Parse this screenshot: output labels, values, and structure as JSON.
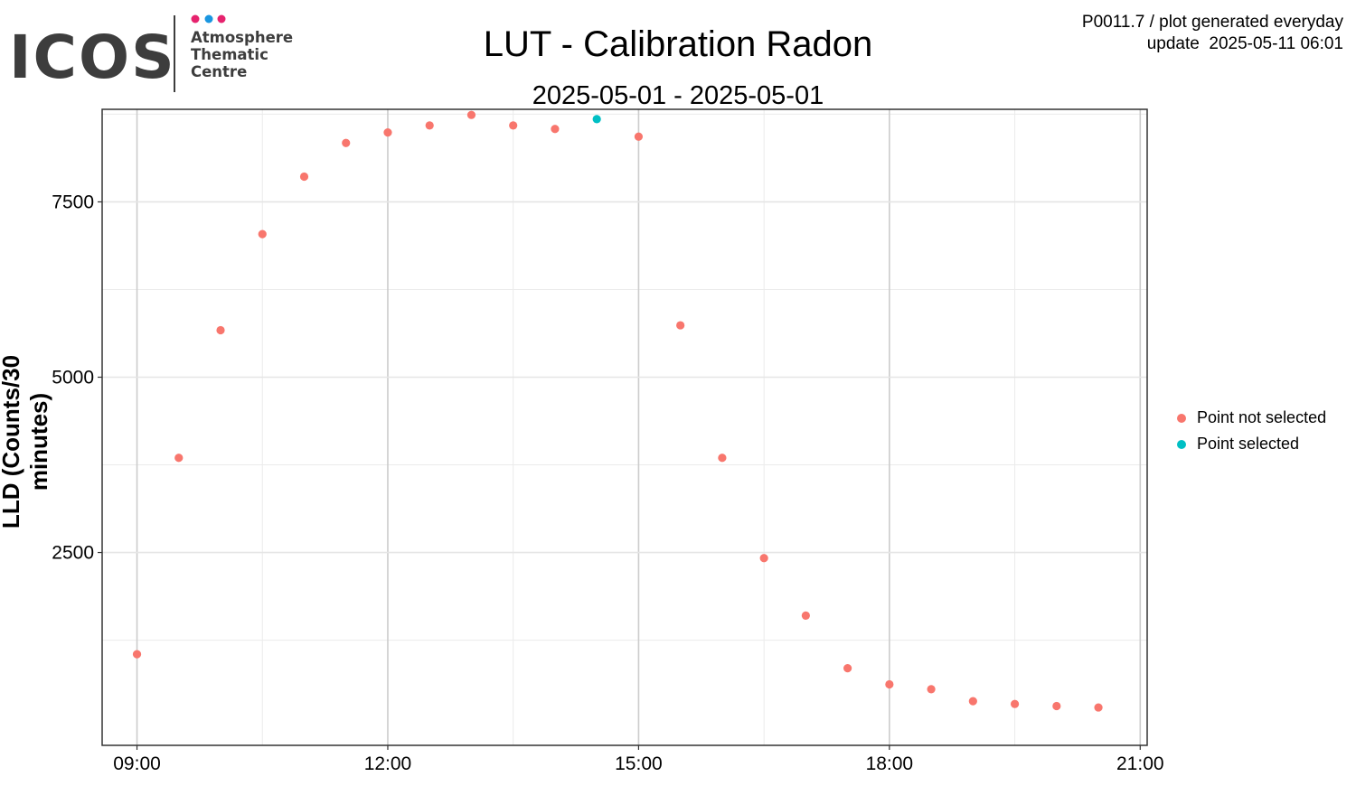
{
  "logo": {
    "wordmark": "ICOS",
    "line1": "Atmosphere",
    "line2": "Thematic",
    "line3": "Centre",
    "dot_colors": [
      "#e6236e",
      "#1a96e0",
      "#e6236e"
    ],
    "wordmark_color": "#3d3d3d"
  },
  "header": {
    "meta_line1": "P0011.7 / plot generated everyday",
    "meta_line2": "update  2025-05-11 06:01"
  },
  "chart_data": {
    "type": "scatter",
    "title": "LUT - Calibration Radon",
    "subtitle": "2025-05-01 - 2025-05-01",
    "xlabel": "",
    "ylabel": "LLD (Counts/30 minutes)",
    "x_tick_labels": [
      "09:00",
      "12:00",
      "15:00",
      "18:00",
      "21:00"
    ],
    "y_tick_labels": [
      "2500",
      "5000",
      "7500"
    ],
    "xlim": [
      "08:35",
      "21:05"
    ],
    "ylim": [
      -250,
      8820
    ],
    "grid": true,
    "legend_position": "right",
    "series": [
      {
        "name": "Point not selected",
        "color": "#f8766d",
        "points": [
          {
            "x": "09:00",
            "y": 1050
          },
          {
            "x": "09:30",
            "y": 3850
          },
          {
            "x": "10:00",
            "y": 5670
          },
          {
            "x": "10:30",
            "y": 7040
          },
          {
            "x": "11:00",
            "y": 7860
          },
          {
            "x": "11:30",
            "y": 8340
          },
          {
            "x": "12:00",
            "y": 8490
          },
          {
            "x": "12:30",
            "y": 8590
          },
          {
            "x": "13:00",
            "y": 8740
          },
          {
            "x": "13:30",
            "y": 8590
          },
          {
            "x": "14:00",
            "y": 8540
          },
          {
            "x": "15:00",
            "y": 8430
          },
          {
            "x": "15:30",
            "y": 5740
          },
          {
            "x": "16:00",
            "y": 3850
          },
          {
            "x": "16:30",
            "y": 2420
          },
          {
            "x": "17:00",
            "y": 1600
          },
          {
            "x": "17:30",
            "y": 850
          },
          {
            "x": "18:00",
            "y": 620
          },
          {
            "x": "18:30",
            "y": 550
          },
          {
            "x": "19:00",
            "y": 380
          },
          {
            "x": "19:30",
            "y": 340
          },
          {
            "x": "20:00",
            "y": 310
          },
          {
            "x": "20:30",
            "y": 290
          }
        ]
      },
      {
        "name": "Point selected",
        "color": "#00bfc4",
        "points": [
          {
            "x": "14:30",
            "y": 8680
          }
        ]
      }
    ]
  }
}
